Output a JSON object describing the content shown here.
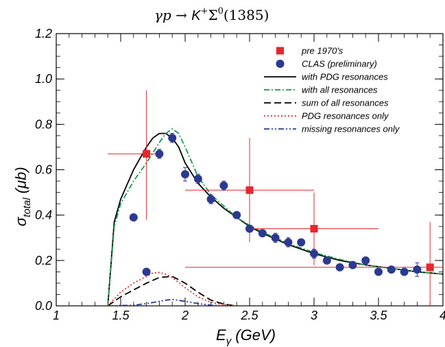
{
  "chart_data": {
    "type": "scatter",
    "title": {
      "lhs": "γp → ",
      "k": "K",
      "k_sup": "+",
      "sigma": "Σ",
      "sigma_sup": "0",
      "mass": "(1385)"
    },
    "xlabel": {
      "main": "E",
      "sub": "γ",
      "unit": "  (GeV)"
    },
    "ylabel": {
      "main": "σ",
      "sub": "total",
      "unit": "  (μb)"
    },
    "xlim": [
      1,
      4
    ],
    "ylim": [
      0,
      1.2
    ],
    "xticks": [
      {
        "v": 1,
        "label": "1"
      },
      {
        "v": 1.5,
        "label": "1.5"
      },
      {
        "v": 2,
        "label": "2"
      },
      {
        "v": 2.5,
        "label": "2.5"
      },
      {
        "v": 3,
        "label": "3"
      },
      {
        "v": 3.5,
        "label": "3.5"
      },
      {
        "v": 4,
        "label": "4"
      }
    ],
    "yticks": [
      {
        "v": 0,
        "label": "0.0"
      },
      {
        "v": 0.2,
        "label": "0.2"
      },
      {
        "v": 0.4,
        "label": "0.4"
      },
      {
        "v": 0.6,
        "label": "0.6"
      },
      {
        "v": 0.8,
        "label": "0.8"
      },
      {
        "v": 1.0,
        "label": "1.0"
      },
      {
        "v": 1.2,
        "label": "1.2"
      }
    ],
    "legend_position": "top-right",
    "series": [
      {
        "name": "pre 1970's",
        "kind": "points",
        "marker": "square",
        "color": "#e8262d",
        "points": [
          {
            "x": 1.7,
            "y": 0.67,
            "xlo": 1.4,
            "xhi": 1.8,
            "ylo": 0.38,
            "yhi": 0.95
          },
          {
            "x": 2.5,
            "y": 0.51,
            "xlo": 2.0,
            "xhi": 3.0,
            "ylo": 0.28,
            "yhi": 0.74
          },
          {
            "x": 3.0,
            "y": 0.34,
            "xlo": 2.5,
            "xhi": 3.5,
            "ylo": 0.18,
            "yhi": 0.5
          },
          {
            "x": 3.9,
            "y": 0.17,
            "xlo": 2.0,
            "xhi": 4.0,
            "ylo": 0.0,
            "yhi": 0.37
          }
        ]
      },
      {
        "name": "CLAS (preliminary)",
        "kind": "points",
        "marker": "circle",
        "color": "#2b3990",
        "points": [
          {
            "x": 1.6,
            "y": 0.39,
            "xerr": 0.025,
            "yerr": 0.0
          },
          {
            "x": 1.7,
            "y": 0.15,
            "xerr": 0.025,
            "yerr": 0.0
          },
          {
            "x": 1.8,
            "y": 0.67,
            "xerr": 0.025,
            "yerr": 0.02
          },
          {
            "x": 1.9,
            "y": 0.74,
            "xerr": 0.025,
            "yerr": 0.02
          },
          {
            "x": 2.0,
            "y": 0.58,
            "xerr": 0.025,
            "yerr": 0.03
          },
          {
            "x": 2.1,
            "y": 0.56,
            "xerr": 0.025,
            "yerr": 0.02
          },
          {
            "x": 2.2,
            "y": 0.47,
            "xerr": 0.025,
            "yerr": 0.02
          },
          {
            "x": 2.3,
            "y": 0.53,
            "xerr": 0.025,
            "yerr": 0.02
          },
          {
            "x": 2.4,
            "y": 0.4,
            "xerr": 0.025,
            "yerr": 0.0
          },
          {
            "x": 2.5,
            "y": 0.34,
            "xerr": 0.025,
            "yerr": 0.0
          },
          {
            "x": 2.6,
            "y": 0.32,
            "xerr": 0.025,
            "yerr": 0.0
          },
          {
            "x": 2.7,
            "y": 0.3,
            "xerr": 0.025,
            "yerr": 0.02
          },
          {
            "x": 2.8,
            "y": 0.28,
            "xerr": 0.025,
            "yerr": 0.02
          },
          {
            "x": 2.9,
            "y": 0.28,
            "xerr": 0.025,
            "yerr": 0.0
          },
          {
            "x": 3.0,
            "y": 0.23,
            "xerr": 0.025,
            "yerr": 0.02
          },
          {
            "x": 3.1,
            "y": 0.2,
            "xerr": 0.025,
            "yerr": 0.0
          },
          {
            "x": 3.2,
            "y": 0.17,
            "xerr": 0.025,
            "yerr": 0.0
          },
          {
            "x": 3.3,
            "y": 0.18,
            "xerr": 0.025,
            "yerr": 0.0
          },
          {
            "x": 3.4,
            "y": 0.2,
            "xerr": 0.025,
            "yerr": 0.0
          },
          {
            "x": 3.5,
            "y": 0.15,
            "xerr": 0.025,
            "yerr": 0.0
          },
          {
            "x": 3.6,
            "y": 0.16,
            "xerr": 0.025,
            "yerr": 0.0
          },
          {
            "x": 3.7,
            "y": 0.15,
            "xerr": 0.025,
            "yerr": 0.0
          },
          {
            "x": 3.8,
            "y": 0.16,
            "xerr": 0.025,
            "yerr": 0.03
          }
        ]
      },
      {
        "name": "with PDG resonances",
        "kind": "line",
        "color": "#000000",
        "dash": "",
        "x": [
          1.4,
          1.45,
          1.5,
          1.6,
          1.7,
          1.75,
          1.8,
          1.85,
          1.9,
          1.95,
          2.0,
          2.1,
          2.2,
          2.3,
          2.4,
          2.5,
          2.6,
          2.8,
          3.0,
          3.2,
          3.4,
          3.6,
          3.8,
          4.0
        ],
        "y": [
          0.0,
          0.37,
          0.47,
          0.6,
          0.7,
          0.74,
          0.76,
          0.76,
          0.74,
          0.7,
          0.63,
          0.54,
          0.48,
          0.43,
          0.39,
          0.35,
          0.32,
          0.27,
          0.23,
          0.2,
          0.18,
          0.165,
          0.15,
          0.14
        ]
      },
      {
        "name": "with all resonances",
        "kind": "line",
        "color": "#1a9a4a",
        "dash": "8,3,2,3",
        "x": [
          1.4,
          1.45,
          1.5,
          1.6,
          1.7,
          1.8,
          1.85,
          1.9,
          1.95,
          2.0,
          2.1,
          2.2,
          2.3,
          2.4,
          2.5,
          2.6,
          2.8,
          3.0,
          3.2,
          3.4,
          3.6,
          3.8,
          4.0
        ],
        "y": [
          0.0,
          0.35,
          0.45,
          0.55,
          0.63,
          0.72,
          0.76,
          0.78,
          0.76,
          0.7,
          0.57,
          0.49,
          0.44,
          0.39,
          0.355,
          0.325,
          0.275,
          0.235,
          0.205,
          0.18,
          0.165,
          0.15,
          0.14
        ]
      },
      {
        "name": "sum of all resonances",
        "kind": "line",
        "color": "#000000",
        "dash": "10,5",
        "x": [
          1.4,
          1.5,
          1.6,
          1.7,
          1.8,
          1.9,
          2.0,
          2.1,
          2.2,
          2.3,
          2.4
        ],
        "y": [
          0.0,
          0.04,
          0.07,
          0.1,
          0.125,
          0.13,
          0.1,
          0.06,
          0.025,
          0.008,
          0.0
        ]
      },
      {
        "name": "PDG resonances only",
        "kind": "line",
        "color": "#e8262d",
        "dash": "2,3",
        "x": [
          1.4,
          1.5,
          1.6,
          1.7,
          1.75,
          1.8,
          1.85,
          1.9,
          2.0,
          2.1,
          2.2,
          2.3,
          2.4
        ],
        "y": [
          0.0,
          0.06,
          0.1,
          0.13,
          0.145,
          0.147,
          0.14,
          0.125,
          0.08,
          0.04,
          0.015,
          0.005,
          0.0
        ]
      },
      {
        "name": "missing resonances only",
        "kind": "line",
        "color": "#2b3990",
        "dash": "8,3,2,3,2,3",
        "x": [
          1.4,
          1.6,
          1.7,
          1.8,
          1.85,
          1.9,
          2.0,
          2.1,
          2.2,
          2.3
        ],
        "y": [
          0.0,
          0.003,
          0.01,
          0.02,
          0.025,
          0.028,
          0.02,
          0.01,
          0.003,
          0.0
        ]
      }
    ]
  }
}
